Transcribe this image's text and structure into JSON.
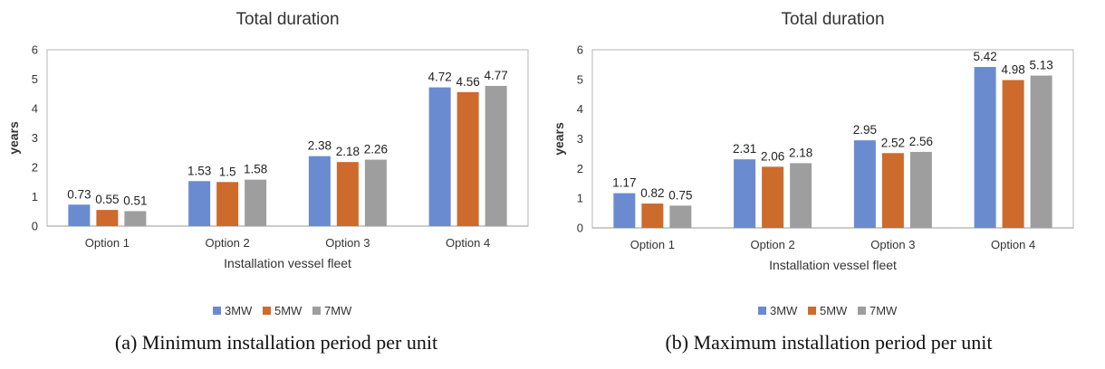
{
  "chart_data": [
    {
      "type": "bar",
      "title": "Total duration",
      "xlabel": "Installation vessel fleet",
      "ylabel": "years",
      "ylim": [
        0,
        6
      ],
      "yticks": [
        0,
        1,
        2,
        3,
        4,
        5,
        6
      ],
      "categories": [
        "Option 1",
        "Option 2",
        "Option 3",
        "Option 4"
      ],
      "series": [
        {
          "name": "3MW",
          "color": "#6b8bd0",
          "values": [
            0.73,
            1.53,
            2.38,
            4.72
          ],
          "labels": [
            "0.73",
            "1.53",
            "2.38",
            "4.72"
          ]
        },
        {
          "name": "5MW",
          "color": "#cd6b2c",
          "values": [
            0.55,
            1.5,
            2.18,
            4.56
          ],
          "labels": [
            "0.55",
            "1.5",
            "2.18",
            "4.56"
          ]
        },
        {
          "name": "7MW",
          "color": "#9e9e9e",
          "values": [
            0.51,
            1.58,
            2.26,
            4.77
          ],
          "labels": [
            "0.51",
            "1.58",
            "2.26",
            "4.77"
          ]
        }
      ],
      "grid": false,
      "legend_position": "bottom",
      "caption": "(a) Minimum installation period per unit"
    },
    {
      "type": "bar",
      "title": "Total duration",
      "xlabel": "Installation vessel fleet",
      "ylabel": "years",
      "ylim": [
        0,
        6
      ],
      "yticks": [
        0,
        1,
        2,
        3,
        4,
        5,
        6
      ],
      "categories": [
        "Option 1",
        "Option 2",
        "Option 3",
        "Option 4"
      ],
      "series": [
        {
          "name": "3MW",
          "color": "#6b8bd0",
          "values": [
            1.17,
            2.31,
            2.95,
            5.42
          ],
          "labels": [
            "1.17",
            "2.31",
            "2.95",
            "5.42"
          ]
        },
        {
          "name": "5MW",
          "color": "#cd6b2c",
          "values": [
            0.82,
            2.06,
            2.52,
            4.98
          ],
          "labels": [
            "0.82",
            "2.06",
            "2.52",
            "4.98"
          ]
        },
        {
          "name": "7MW",
          "color": "#9e9e9e",
          "values": [
            0.75,
            2.18,
            2.56,
            5.13
          ],
          "labels": [
            "0.75",
            "2.18",
            "2.56",
            "5.13"
          ]
        }
      ],
      "grid": false,
      "legend_position": "bottom",
      "caption": "(b) Maximum installation period per unit"
    }
  ]
}
